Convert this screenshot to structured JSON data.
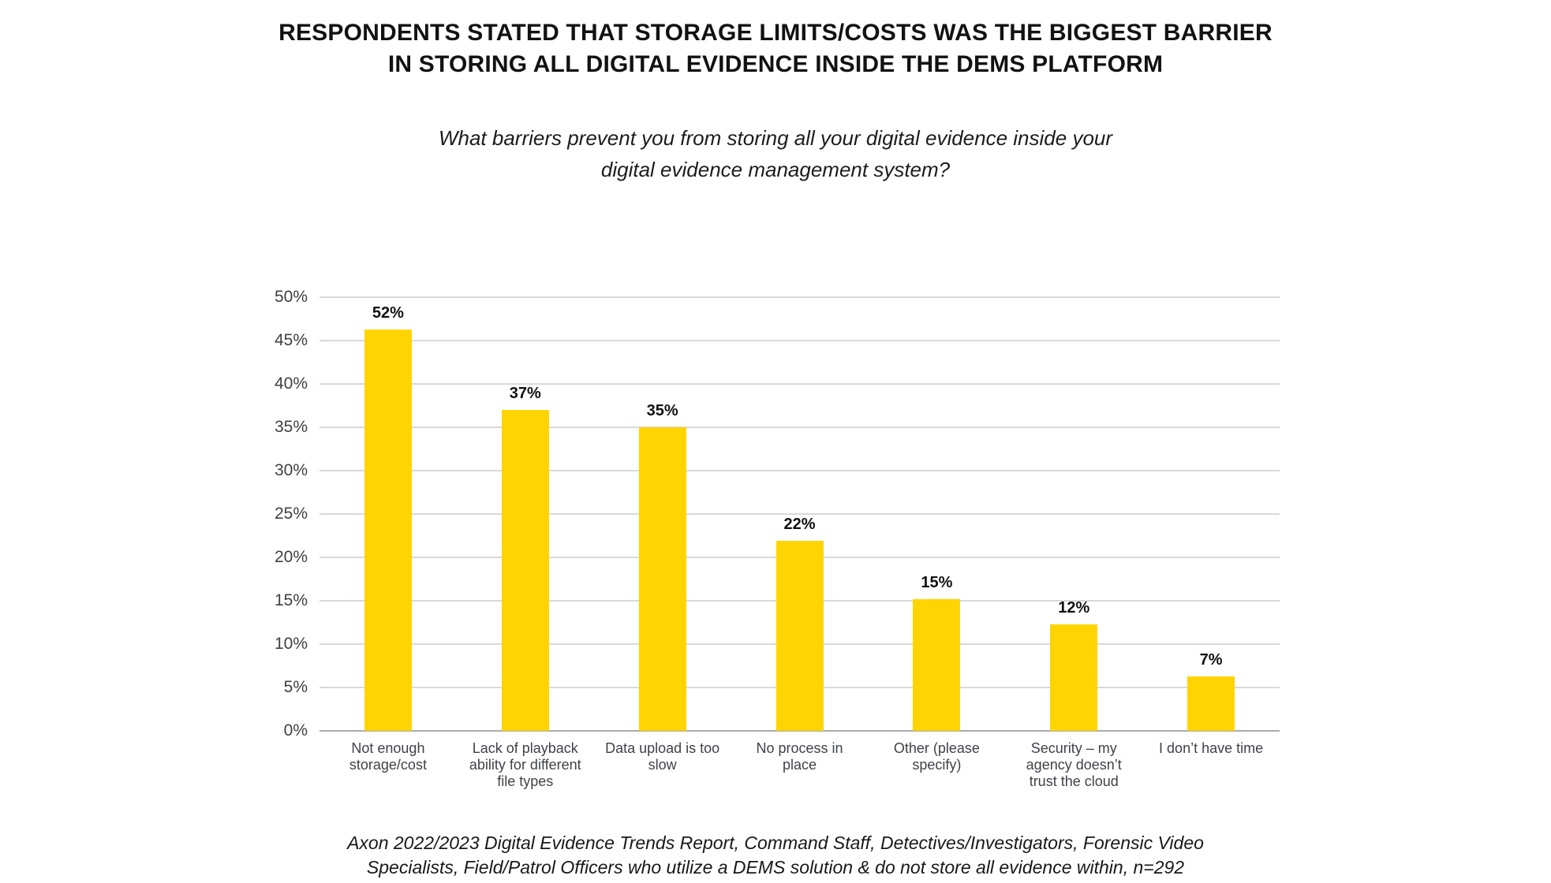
{
  "title": {
    "lines": [
      "RESPONDENTS STATED THAT STORAGE LIMITS/COSTS WAS THE BIGGEST BARRIER",
      "IN STORING ALL DIGITAL EVIDENCE INSIDE THE DEMS PLATFORM"
    ]
  },
  "subtitle": {
    "lines": [
      "What barriers prevent you from storing all your digital evidence inside your",
      "digital evidence management system?"
    ]
  },
  "chart_data": {
    "type": "bar",
    "title": "RESPONDENTS STATED THAT STORAGE LIMITS/COSTS WAS THE BIGGEST BARRIER IN STORING ALL DIGITAL EVIDENCE INSIDE THE DEMS PLATFORM",
    "subtitle": "What barriers prevent you from storing all your digital evidence inside your digital evidence management system?",
    "categories": [
      "Not enough storage/cost",
      "Lack of playback ability for different file types",
      "Data upload is too slow",
      "No process in place",
      "Other (please specify)",
      "Security – my agency doesn’t trust the cloud",
      "I don’t have time"
    ],
    "values": [
      52,
      37,
      35,
      22,
      15,
      12,
      7
    ],
    "value_labels": [
      "52%",
      "37%",
      "35%",
      "22%",
      "15%",
      "12%",
      "7%"
    ],
    "bar_rendered_heights_pct": [
      46.3,
      37,
      35,
      21.9,
      15.2,
      12.3,
      6.3
    ],
    "xlabel": "",
    "ylabel": "",
    "ylim": [
      0,
      50
    ],
    "ytick_step": 5,
    "yticks": [
      "50%",
      "45%",
      "40%",
      "35%",
      "30%",
      "25%",
      "20%",
      "15%",
      "10%",
      "5%",
      "0%"
    ],
    "grid": "horizontal-major-only",
    "legend": "none",
    "bar_color": "#ffd400",
    "gridline_color": "#d9d9d9",
    "baseline_color": "#ababab"
  },
  "footer": {
    "lines": [
      "Axon 2022/2023 Digital Evidence Trends Report, Command Staff, Detectives/Investigators, Forensic Video",
      "Specialists, Field/Patrol Officers who utilize a DEMS solution & do not store all evidence within, n=292"
    ]
  }
}
